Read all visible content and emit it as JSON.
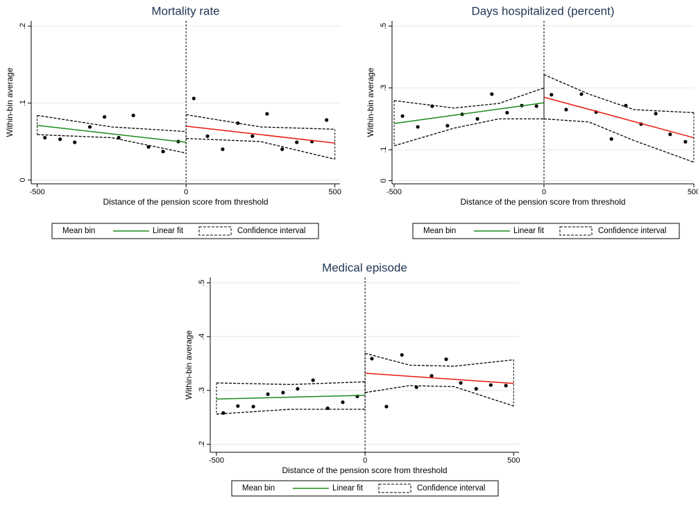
{
  "chart_data": [
    {
      "type": "scatter",
      "title": "Mortality rate",
      "x_label": "Distance of the pension score from threshold",
      "y_label": "Within-bin average",
      "xlim": [
        -520,
        517
      ],
      "ylim": [
        -0.005,
        0.207
      ],
      "xticks": [
        -500,
        0,
        500
      ],
      "yticks": [
        0,
        {
          "value": 0.1,
          "label": ".1"
        },
        {
          "value": 0.2,
          "label": ".2"
        }
      ],
      "grid": true,
      "cutoff": 0,
      "legend": "bottom",
      "series": [
        {
          "name": "Mean bin",
          "type": "scatter",
          "color": "#000000",
          "x": [
            -474,
            -423,
            -374,
            -323,
            -274,
            -226,
            -177,
            -126,
            -77,
            -26,
            26,
            72,
            123,
            174,
            223,
            272,
            323,
            372,
            423,
            472
          ],
          "values": [
            0.055,
            0.053,
            0.049,
            0.069,
            0.082,
            0.055,
            0.084,
            0.043,
            0.037,
            0.05,
            0.106,
            0.057,
            0.04,
            0.074,
            0.057,
            0.086,
            0.04,
            0.049,
            0.05,
            0.078
          ]
        },
        {
          "name": "Linear fit",
          "type": "line",
          "color": "#1a8a1a",
          "segments": [
            {
              "color": "#1a8a1a",
              "x": [
                -500,
                0
              ],
              "values": [
                0.071,
                0.049
              ]
            },
            {
              "color": "#e8190f",
              "x": [
                0,
                500
              ],
              "values": [
                0.07,
                0.048
              ]
            }
          ]
        },
        {
          "name": "Confidence interval",
          "type": "band",
          "color": "#000000",
          "segments": [
            {
              "x": [
                -500,
                -250,
                0
              ],
              "upper": [
                0.084,
                0.069,
                0.063
              ],
              "lower": [
                0.059,
                0.055,
                0.035
              ]
            },
            {
              "x": [
                0,
                250,
                500
              ],
              "upper": [
                0.085,
                0.069,
                0.066
              ],
              "lower": [
                0.054,
                0.05,
                0.027
              ]
            }
          ]
        }
      ]
    },
    {
      "type": "scatter",
      "title": "Days hospitalized (percent)",
      "x_label": "Distance of the pension score from threshold",
      "y_label": "Within-bin average",
      "xlim": [
        -507,
        500
      ],
      "ylim": [
        -0.01,
        0.517
      ],
      "xticks": [
        -500,
        0,
        500
      ],
      "yticks": [
        0,
        {
          "value": 0.1,
          "label": ".1"
        },
        {
          "value": 0.3,
          "label": ".3"
        },
        {
          "value": 0.5,
          "label": ".5"
        }
      ],
      "grid": true,
      "cutoff": 0,
      "legend": "bottom",
      "series": [
        {
          "name": "Mean bin",
          "type": "scatter",
          "color": "#000000",
          "x": [
            -472,
            -421,
            -373,
            -322,
            -273,
            -222,
            -174,
            -123,
            -74,
            -25,
            25,
            74,
            125,
            174,
            225,
            273,
            324,
            373,
            421,
            472
          ],
          "values": [
            0.209,
            0.174,
            0.241,
            0.178,
            0.215,
            0.2,
            0.28,
            0.22,
            0.243,
            0.241,
            0.278,
            0.23,
            0.28,
            0.222,
            0.135,
            0.243,
            0.183,
            0.217,
            0.15,
            0.126
          ]
        },
        {
          "name": "Linear fit",
          "type": "line",
          "color": "#1a8a1a",
          "segments": [
            {
              "color": "#1a8a1a",
              "x": [
                -500,
                0
              ],
              "values": [
                0.185,
                0.252
              ]
            },
            {
              "color": "#e8190f",
              "x": [
                0,
                500
              ],
              "values": [
                0.27,
                0.139
              ]
            }
          ]
        },
        {
          "name": "Confidence interval",
          "type": "band",
          "color": "#000000",
          "segments": [
            {
              "x": [
                -500,
                -300,
                -150,
                0
              ],
              "upper": [
                0.259,
                0.235,
                0.25,
                0.3
              ],
              "lower": [
                0.113,
                0.17,
                0.2,
                0.2
              ]
            },
            {
              "x": [
                0,
                150,
                300,
                500
              ],
              "upper": [
                0.343,
                0.28,
                0.23,
                0.22
              ],
              "lower": [
                0.2,
                0.19,
                0.13,
                0.06
              ]
            }
          ]
        }
      ]
    },
    {
      "type": "scatter",
      "title": "Medical episode",
      "x_label": "Distance of the pension score from threshold",
      "y_label": "Within-bin average",
      "xlim": [
        -521,
        518
      ],
      "ylim": [
        0.185,
        0.51
      ],
      "xticks": [
        -500,
        0,
        500
      ],
      "yticks": [
        {
          "value": 0.2,
          "label": ".2"
        },
        {
          "value": 0.3,
          "label": ".3"
        },
        {
          "value": 0.4,
          "label": ".4"
        },
        {
          "value": 0.5,
          "label": ".5"
        }
      ],
      "grid": true,
      "cutoff": 0,
      "legend": "bottom",
      "series": [
        {
          "name": "Mean bin",
          "type": "scatter",
          "color": "#000000",
          "x": [
            -477,
            -428,
            -376,
            -327,
            -276,
            -227,
            -175,
            -126,
            -75,
            -26,
            23,
            72,
            124,
            173,
            224,
            273,
            322,
            374,
            423,
            474
          ],
          "values": [
            0.258,
            0.271,
            0.27,
            0.293,
            0.296,
            0.303,
            0.319,
            0.267,
            0.278,
            0.289,
            0.359,
            0.27,
            0.366,
            0.306,
            0.327,
            0.358,
            0.314,
            0.303,
            0.31,
            0.309
          ]
        },
        {
          "name": "Linear fit",
          "type": "line",
          "color": "#1a8a1a",
          "segments": [
            {
              "color": "#1a8a1a",
              "x": [
                -500,
                0
              ],
              "values": [
                0.284,
                0.291
              ]
            },
            {
              "color": "#e8190f",
              "x": [
                0,
                500
              ],
              "values": [
                0.332,
                0.313
              ]
            }
          ]
        },
        {
          "name": "Confidence interval",
          "type": "band",
          "color": "#000000",
          "segments": [
            {
              "x": [
                -500,
                -250,
                0
              ],
              "upper": [
                0.314,
                0.311,
                0.316
              ],
              "lower": [
                0.256,
                0.265,
                0.265
              ]
            },
            {
              "x": [
                0,
                150,
                300,
                500
              ],
              "upper": [
                0.369,
                0.347,
                0.345,
                0.357
              ],
              "lower": [
                0.296,
                0.309,
                0.307,
                0.271
              ]
            }
          ]
        }
      ]
    }
  ]
}
